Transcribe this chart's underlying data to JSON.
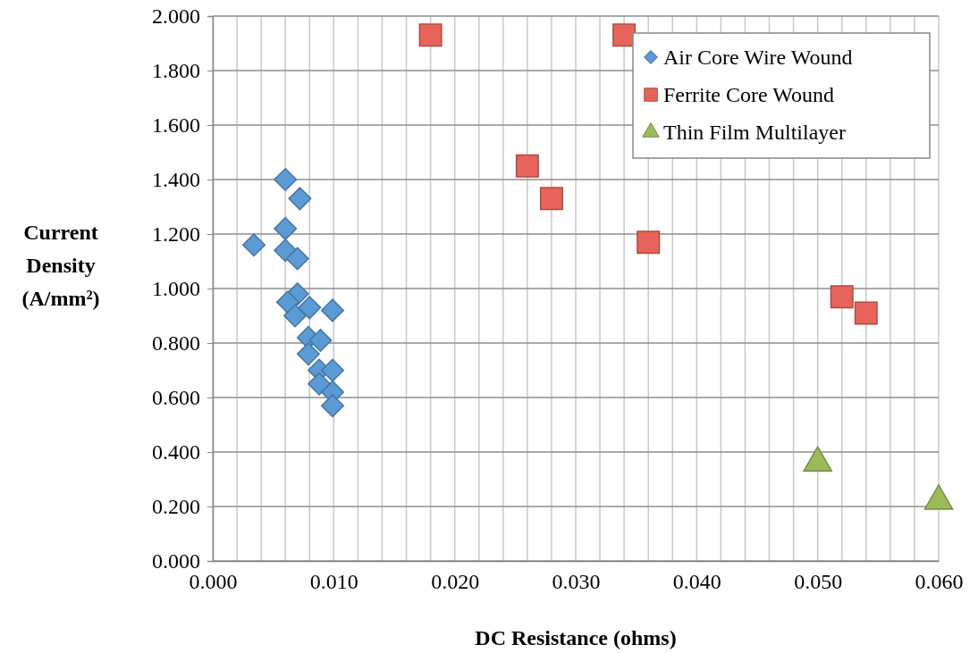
{
  "chart_data": {
    "type": "scatter",
    "xlabel": "DC Resistance (ohms)",
    "ylabel": "Current Density (A/mm²)",
    "xlim": [
      0,
      0.06
    ],
    "ylim": [
      0,
      2
    ],
    "xticks": [
      {
        "value": 0,
        "label": "0.000"
      },
      {
        "value": 0.002,
        "label": null
      },
      {
        "value": 0.004,
        "label": null
      },
      {
        "value": 0.006,
        "label": null
      },
      {
        "value": 0.008,
        "label": null
      },
      {
        "value": 0.01,
        "label": "0.010"
      },
      {
        "value": 0.012,
        "label": null
      },
      {
        "value": 0.014,
        "label": null
      },
      {
        "value": 0.016,
        "label": null
      },
      {
        "value": 0.018,
        "label": null
      },
      {
        "value": 0.02,
        "label": "0.020"
      },
      {
        "value": 0.022,
        "label": null
      },
      {
        "value": 0.024,
        "label": null
      },
      {
        "value": 0.026,
        "label": null
      },
      {
        "value": 0.028,
        "label": null
      },
      {
        "value": 0.03,
        "label": "0.030"
      },
      {
        "value": 0.032,
        "label": null
      },
      {
        "value": 0.034,
        "label": null
      },
      {
        "value": 0.036,
        "label": null
      },
      {
        "value": 0.038,
        "label": null
      },
      {
        "value": 0.04,
        "label": "0.040"
      },
      {
        "value": 0.042,
        "label": null
      },
      {
        "value": 0.044,
        "label": null
      },
      {
        "value": 0.046,
        "label": null
      },
      {
        "value": 0.048,
        "label": null
      },
      {
        "value": 0.05,
        "label": "0.050"
      },
      {
        "value": 0.052,
        "label": null
      },
      {
        "value": 0.054,
        "label": null
      },
      {
        "value": 0.056,
        "label": null
      },
      {
        "value": 0.058,
        "label": null
      },
      {
        "value": 0.06,
        "label": "0.060"
      }
    ],
    "yticks": [
      {
        "value": 0,
        "label": "0.000"
      },
      {
        "value": 0.2,
        "label": "0.200"
      },
      {
        "value": 0.4,
        "label": "0.400"
      },
      {
        "value": 0.6,
        "label": "0.600"
      },
      {
        "value": 0.8,
        "label": "0.800"
      },
      {
        "value": 1,
        "label": "1.000"
      },
      {
        "value": 1.2,
        "label": "1.200"
      },
      {
        "value": 1.4,
        "label": "1.400"
      },
      {
        "value": 1.6,
        "label": "1.600"
      },
      {
        "value": 1.8,
        "label": "1.800"
      },
      {
        "value": 2,
        "label": "2.000"
      }
    ],
    "grid": true,
    "legend": "top right",
    "series": [
      {
        "name": "Air Core Wire Wound",
        "color": "#5b9bd5",
        "marker": "diamond",
        "x": [
          0.006,
          0.0072,
          0.006,
          0.0034,
          0.006,
          0.007,
          0.007,
          0.0062,
          0.008,
          0.0099,
          0.0068,
          0.0079,
          0.0089,
          0.0079,
          0.0088,
          0.0099,
          0.0088,
          0.0099,
          0.0099
        ],
        "values": [
          1.4,
          1.33,
          1.22,
          1.16,
          1.14,
          1.11,
          0.98,
          0.95,
          0.93,
          0.92,
          0.9,
          0.82,
          0.81,
          0.76,
          0.7,
          0.7,
          0.65,
          0.62,
          0.57
        ]
      },
      {
        "name": "Ferrite Core Wound",
        "color": "#e8635a",
        "marker": "square",
        "x": [
          0.018,
          0.034,
          0.026,
          0.028,
          0.036,
          0.052,
          0.054
        ],
        "values": [
          1.93,
          1.93,
          1.45,
          1.33,
          1.17,
          0.97,
          0.91
        ]
      },
      {
        "name": "Thin Film Multilayer",
        "color": "#9bbb59",
        "marker": "triangle",
        "x": [
          0.05,
          0.06
        ],
        "values": [
          0.36,
          0.22
        ]
      }
    ]
  }
}
